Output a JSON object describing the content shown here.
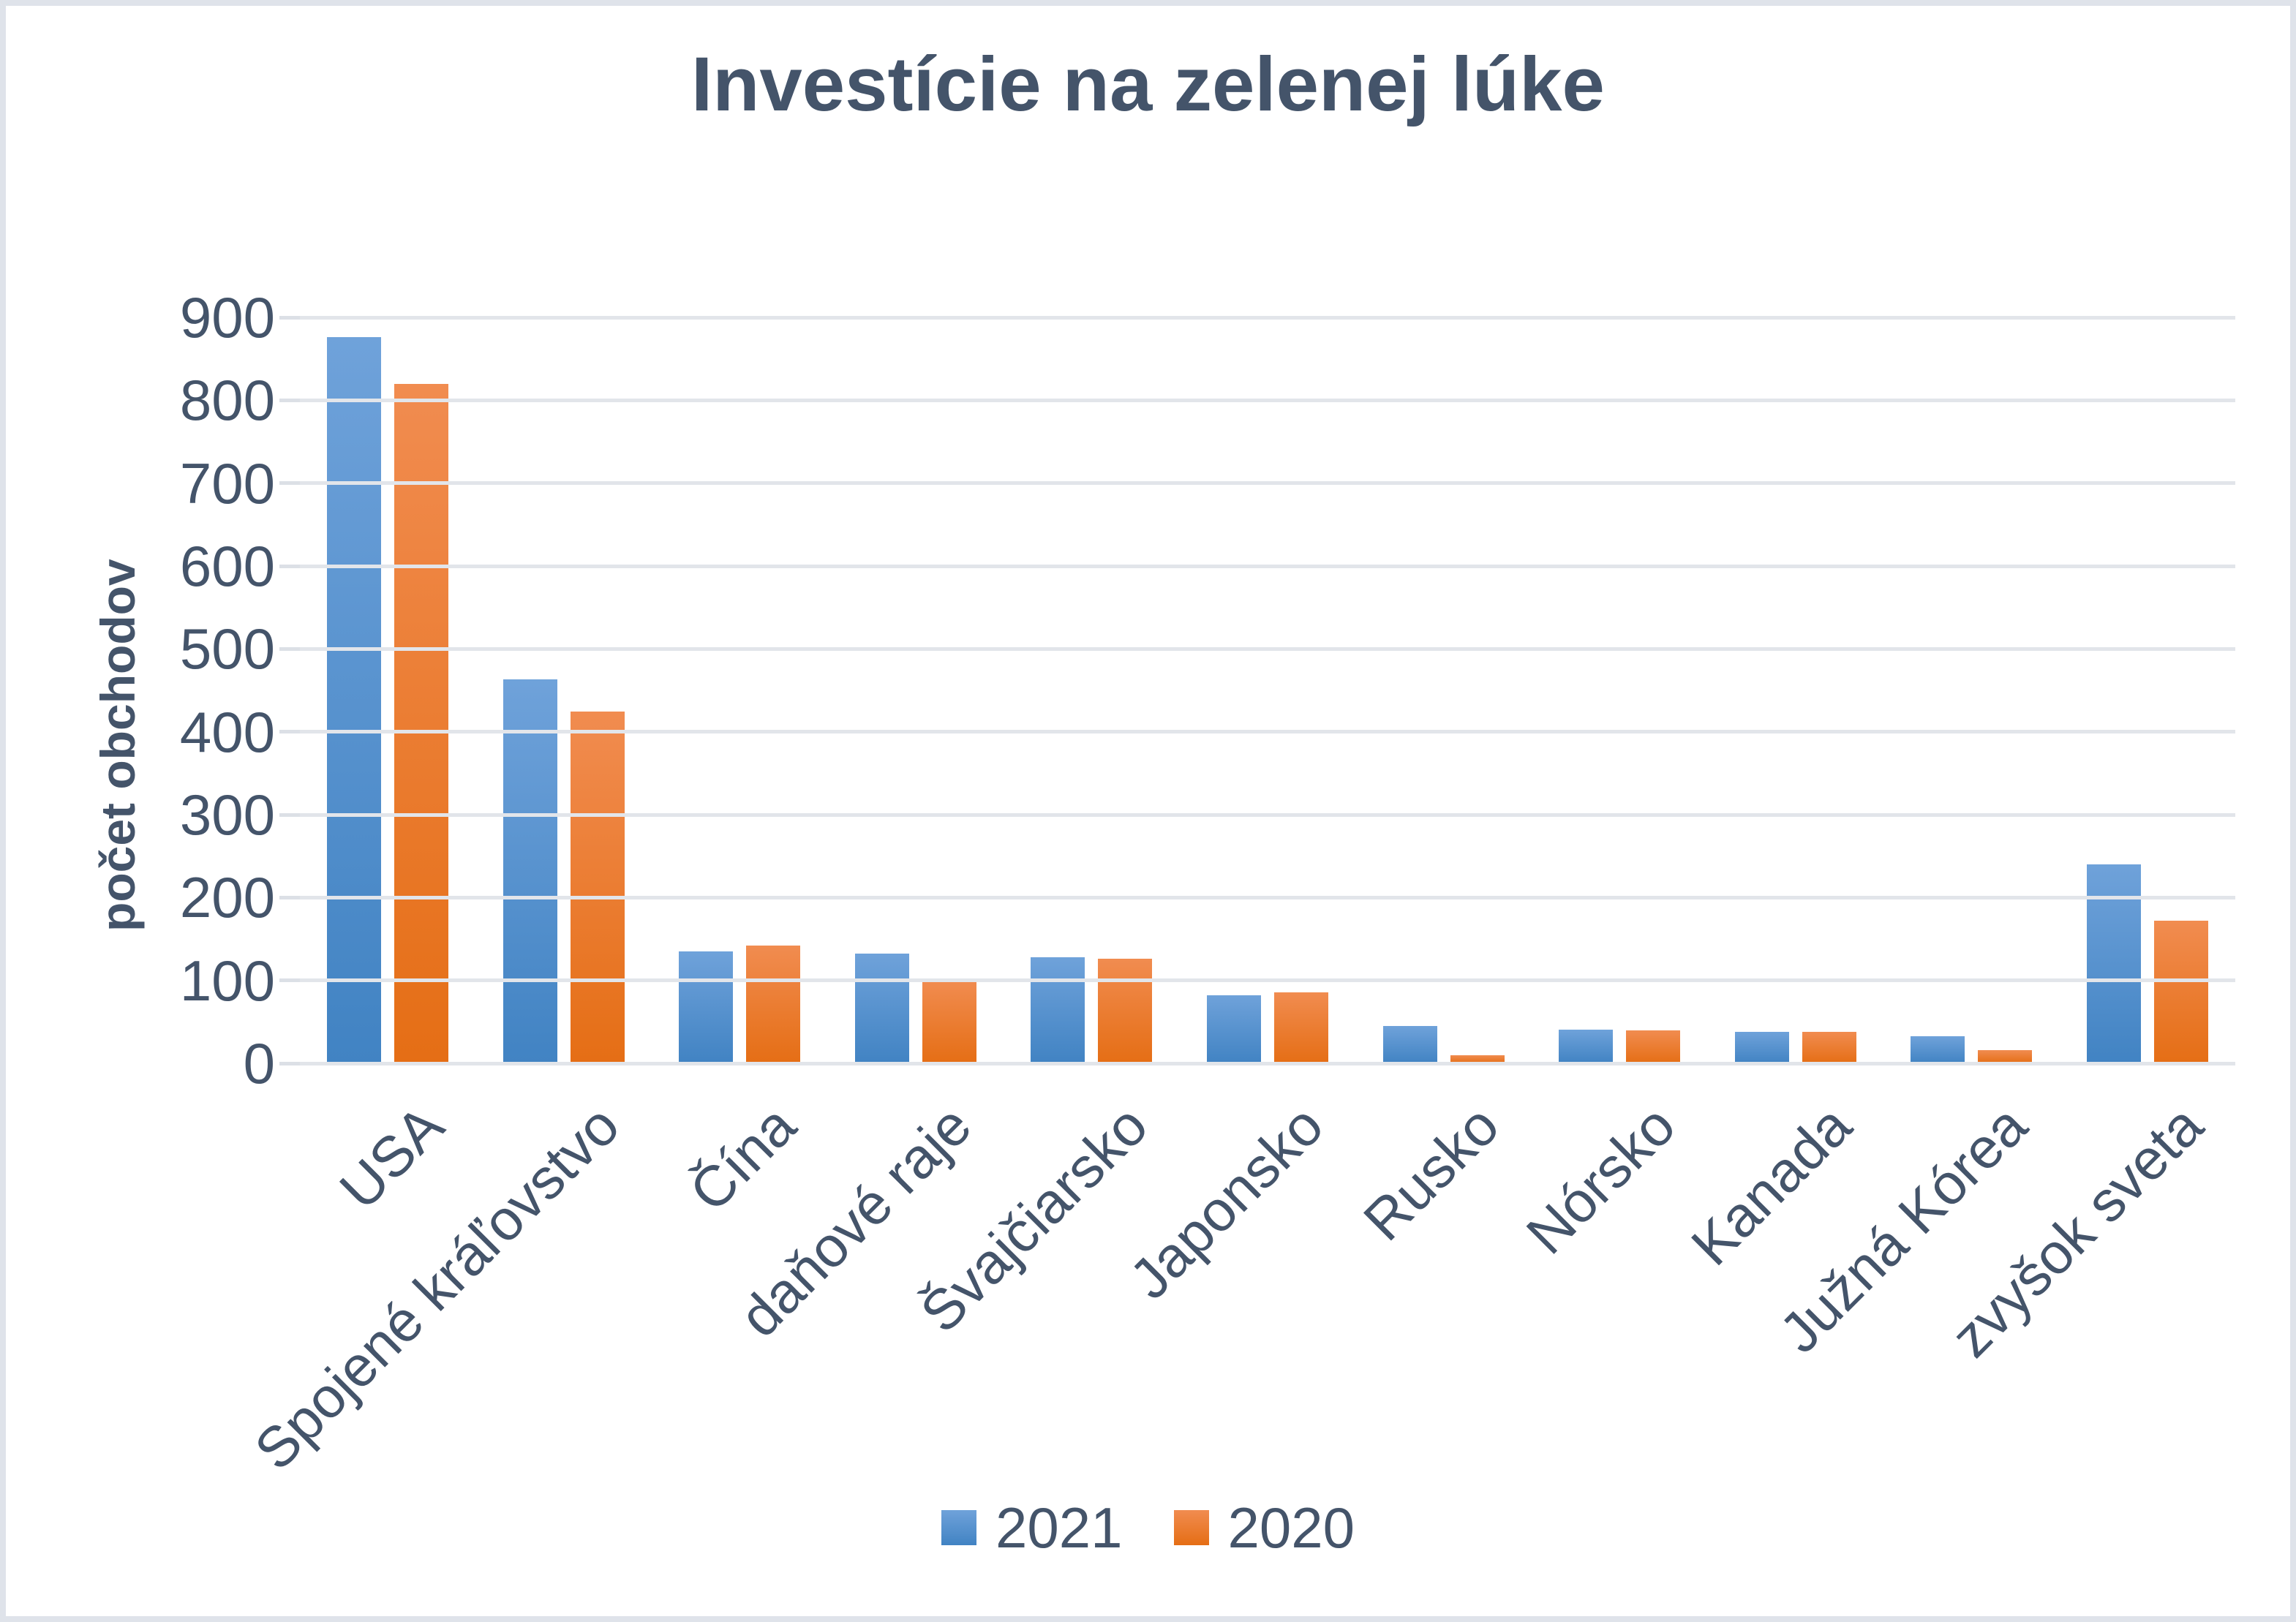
{
  "page": {
    "background": "#ffffff",
    "border_color": "#dfe3ea"
  },
  "colors": {
    "title_text": "#44546A",
    "axis_text": "#44546A",
    "gridline": "#e2e5ea",
    "series_2021_top": "#6FA2DA",
    "series_2021_bottom": "#4183C3",
    "series_2020_top": "#F18C50",
    "series_2020_bottom": "#E56E15"
  },
  "chart_data": {
    "type": "bar",
    "title": "Investície na zelenej lúke",
    "xlabel": "",
    "ylabel": "počet obchodov",
    "ylim": [
      0,
      900
    ],
    "yticks": [
      0,
      100,
      200,
      300,
      400,
      500,
      600,
      700,
      800,
      900
    ],
    "grid": true,
    "legend_position": "bottom",
    "categories": [
      "USA",
      "Spojené kráľovstvo",
      "Čína",
      "daňové raje",
      "Švajčiarsko",
      "Japonsko",
      "Rusko",
      "Nórsko",
      "Kanada",
      "Južná Kórea",
      "zvyšok sveta"
    ],
    "series": [
      {
        "name": "2021",
        "color_top": "#6FA2DA",
        "color_bottom": "#4183C3",
        "values": [
          876,
          463,
          135,
          132,
          128,
          82,
          45,
          41,
          38,
          33,
          240
        ]
      },
      {
        "name": "2020",
        "color_top": "#F18C50",
        "color_bottom": "#E56E15",
        "values": [
          820,
          424,
          142,
          100,
          126,
          86,
          10,
          40,
          38,
          16,
          172
        ]
      }
    ]
  }
}
